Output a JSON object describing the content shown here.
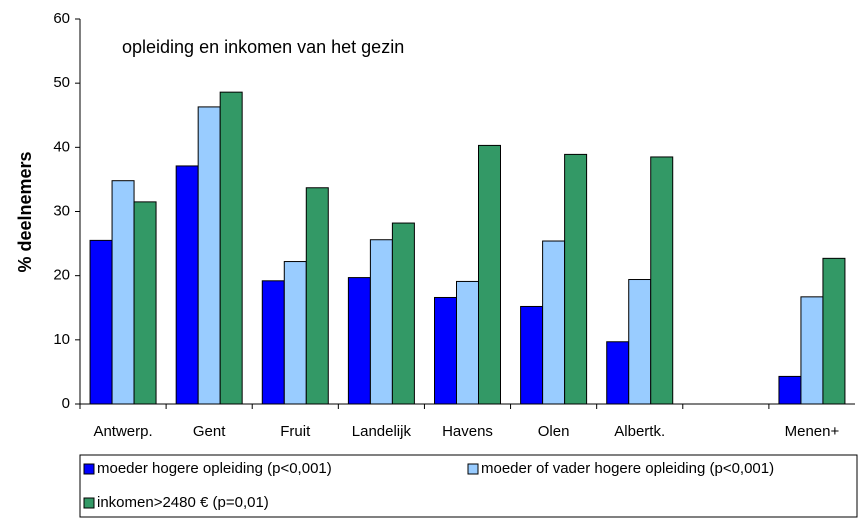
{
  "chart_data": {
    "type": "bar",
    "annotation": "opleiding en inkomen van het gezin",
    "y_label": "% deelnemers",
    "categories": [
      "Antwerp.",
      "Gent",
      "Fruit",
      "Landelijk",
      "Havens",
      "Olen",
      "Albertk.",
      null,
      "Menen+"
    ],
    "series": [
      {
        "name": "moeder hogere opleiding (p<0,001)",
        "color": "#0000ff",
        "values": [
          25.5,
          37.1,
          19.2,
          19.7,
          16.6,
          15.2,
          9.7,
          null,
          4.3
        ]
      },
      {
        "name": "moeder of vader hogere opleiding (p<0,001)",
        "color": "#99ccff",
        "values": [
          34.8,
          46.3,
          22.2,
          25.6,
          19.1,
          25.4,
          19.4,
          null,
          16.7
        ]
      },
      {
        "name": "inkomen>2480 € (p=0,01)",
        "color": "#339966",
        "values": [
          31.5,
          48.6,
          33.7,
          28.2,
          40.3,
          38.9,
          38.5,
          null,
          22.7
        ]
      }
    ],
    "ylim": [
      0,
      60
    ],
    "yticks": [
      0,
      10,
      20,
      30,
      40,
      50,
      60
    ],
    "grid": false,
    "legend": "bottom"
  }
}
